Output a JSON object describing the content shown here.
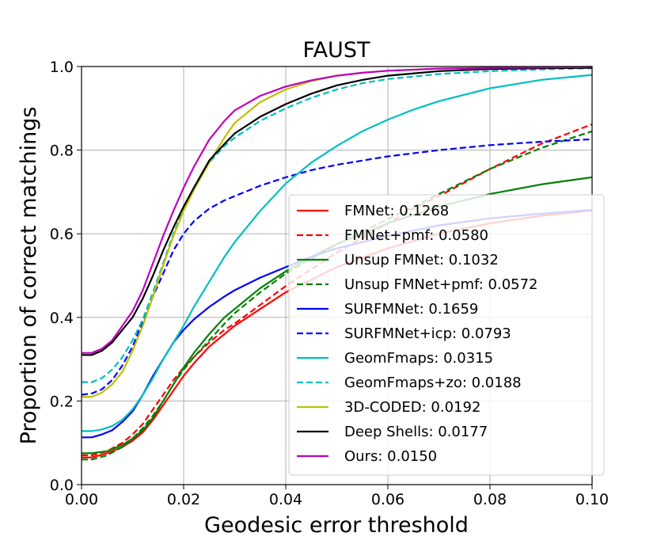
{
  "chart_data": {
    "type": "line",
    "title": "FAUST",
    "xlabel": "Geodesic error threshold",
    "ylabel": "Proportion of correct matchings",
    "xlim": [
      0.0,
      0.1
    ],
    "ylim": [
      0.0,
      1.0
    ],
    "xticks": [
      "0.00",
      "0.02",
      "0.04",
      "0.06",
      "0.08",
      "0.10"
    ],
    "yticks": [
      "0.0",
      "0.2",
      "0.4",
      "0.6",
      "0.8",
      "1.0"
    ],
    "grid": true,
    "legend_position": "lower-right",
    "series": [
      {
        "name": "FMNet: 0.1268",
        "color": "#ff0000",
        "dash": "solid",
        "x": [
          0,
          0.002,
          0.005,
          0.008,
          0.01,
          0.012,
          0.014,
          0.016,
          0.018,
          0.02,
          0.022,
          0.025,
          0.028,
          0.03,
          0.035,
          0.04,
          0.045,
          0.05,
          0.06,
          0.07,
          0.08,
          0.09,
          0.1
        ],
        "y": [
          0.065,
          0.065,
          0.075,
          0.09,
          0.105,
          0.125,
          0.155,
          0.19,
          0.225,
          0.26,
          0.29,
          0.33,
          0.36,
          0.38,
          0.42,
          0.46,
          0.49,
          0.52,
          0.565,
          0.6,
          0.625,
          0.643,
          0.655
        ]
      },
      {
        "name": "FMNet+pmf: 0.0580",
        "color": "#ff0000",
        "dash": "dashed",
        "x": [
          0,
          0.002,
          0.005,
          0.008,
          0.01,
          0.012,
          0.014,
          0.016,
          0.018,
          0.02,
          0.022,
          0.025,
          0.028,
          0.03,
          0.035,
          0.04,
          0.045,
          0.05,
          0.055,
          0.06,
          0.065,
          0.07,
          0.08,
          0.09,
          0.1
        ],
        "y": [
          0.07,
          0.07,
          0.08,
          0.1,
          0.12,
          0.145,
          0.18,
          0.215,
          0.25,
          0.28,
          0.305,
          0.34,
          0.37,
          0.385,
          0.43,
          0.475,
          0.515,
          0.555,
          0.59,
          0.625,
          0.66,
          0.69,
          0.755,
          0.815,
          0.862
        ]
      },
      {
        "name": "Unsup FMNet: 0.1032",
        "color": "#008000",
        "dash": "solid",
        "x": [
          0,
          0.002,
          0.005,
          0.008,
          0.01,
          0.012,
          0.014,
          0.016,
          0.018,
          0.02,
          0.022,
          0.025,
          0.028,
          0.03,
          0.035,
          0.04,
          0.045,
          0.05,
          0.06,
          0.07,
          0.08,
          0.09,
          0.1
        ],
        "y": [
          0.075,
          0.075,
          0.08,
          0.095,
          0.11,
          0.13,
          0.16,
          0.2,
          0.24,
          0.28,
          0.315,
          0.36,
          0.4,
          0.42,
          0.47,
          0.51,
          0.545,
          0.575,
          0.625,
          0.665,
          0.695,
          0.718,
          0.735
        ]
      },
      {
        "name": "Unsup FMNet+pmf: 0.0572",
        "color": "#008000",
        "dash": "dashed",
        "x": [
          0,
          0.002,
          0.005,
          0.008,
          0.01,
          0.012,
          0.014,
          0.016,
          0.018,
          0.02,
          0.022,
          0.025,
          0.028,
          0.03,
          0.035,
          0.04,
          0.045,
          0.05,
          0.055,
          0.06,
          0.065,
          0.07,
          0.08,
          0.09,
          0.1
        ],
        "y": [
          0.06,
          0.06,
          0.07,
          0.09,
          0.11,
          0.135,
          0.165,
          0.2,
          0.24,
          0.275,
          0.305,
          0.345,
          0.385,
          0.41,
          0.46,
          0.505,
          0.54,
          0.575,
          0.605,
          0.635,
          0.665,
          0.695,
          0.755,
          0.805,
          0.845
        ]
      },
      {
        "name": "SURFMNet: 0.1659",
        "color": "#0000ff",
        "dash": "solid",
        "x": [
          0,
          0.002,
          0.004,
          0.006,
          0.008,
          0.01,
          0.012,
          0.014,
          0.016,
          0.018,
          0.02,
          0.022,
          0.025,
          0.028,
          0.03,
          0.035,
          0.04,
          0.045,
          0.05,
          0.06,
          0.07,
          0.08,
          0.09,
          0.1
        ],
        "y": [
          0.113,
          0.113,
          0.12,
          0.13,
          0.15,
          0.175,
          0.215,
          0.26,
          0.3,
          0.34,
          0.37,
          0.395,
          0.425,
          0.45,
          0.465,
          0.495,
          0.52,
          0.545,
          0.565,
          0.595,
          0.62,
          0.637,
          0.648,
          0.657
        ]
      },
      {
        "name": "SURFMNet+icp: 0.0793",
        "color": "#0000ff",
        "dash": "dashed",
        "x": [
          0,
          0.002,
          0.004,
          0.006,
          0.008,
          0.01,
          0.012,
          0.014,
          0.016,
          0.018,
          0.02,
          0.022,
          0.025,
          0.028,
          0.03,
          0.035,
          0.04,
          0.045,
          0.05,
          0.06,
          0.07,
          0.08,
          0.09,
          0.1
        ],
        "y": [
          0.215,
          0.218,
          0.228,
          0.25,
          0.285,
          0.33,
          0.39,
          0.45,
          0.505,
          0.56,
          0.6,
          0.63,
          0.66,
          0.68,
          0.69,
          0.715,
          0.735,
          0.752,
          0.765,
          0.785,
          0.8,
          0.812,
          0.82,
          0.826
        ]
      },
      {
        "name": "GeomFmaps: 0.0315",
        "color": "#00bfbf",
        "dash": "solid",
        "x": [
          0,
          0.002,
          0.004,
          0.006,
          0.008,
          0.01,
          0.012,
          0.014,
          0.016,
          0.018,
          0.02,
          0.022,
          0.025,
          0.028,
          0.03,
          0.035,
          0.04,
          0.045,
          0.05,
          0.055,
          0.06,
          0.065,
          0.07,
          0.08,
          0.09,
          0.1
        ],
        "y": [
          0.128,
          0.128,
          0.132,
          0.14,
          0.155,
          0.18,
          0.215,
          0.255,
          0.3,
          0.34,
          0.38,
          0.425,
          0.485,
          0.545,
          0.58,
          0.655,
          0.72,
          0.77,
          0.81,
          0.845,
          0.873,
          0.897,
          0.917,
          0.948,
          0.968,
          0.98
        ]
      },
      {
        "name": "GeomFmaps+zo: 0.0188",
        "color": "#00bfbf",
        "dash": "dashed",
        "x": [
          0,
          0.002,
          0.004,
          0.006,
          0.008,
          0.01,
          0.012,
          0.014,
          0.016,
          0.018,
          0.02,
          0.022,
          0.025,
          0.028,
          0.03,
          0.035,
          0.04,
          0.045,
          0.05,
          0.055,
          0.06,
          0.07,
          0.08,
          0.09,
          0.1
        ],
        "y": [
          0.245,
          0.245,
          0.255,
          0.275,
          0.305,
          0.345,
          0.395,
          0.46,
          0.53,
          0.6,
          0.66,
          0.71,
          0.77,
          0.81,
          0.83,
          0.87,
          0.9,
          0.925,
          0.945,
          0.96,
          0.97,
          0.982,
          0.989,
          0.993,
          0.996
        ]
      },
      {
        "name": "3D-CODED: 0.0192",
        "color": "#bfbf00",
        "dash": "solid",
        "x": [
          0,
          0.002,
          0.004,
          0.006,
          0.008,
          0.01,
          0.012,
          0.014,
          0.016,
          0.018,
          0.02,
          0.022,
          0.025,
          0.028,
          0.03,
          0.035,
          0.04,
          0.045,
          0.05,
          0.055,
          0.06,
          0.07,
          0.08,
          0.09,
          0.1
        ],
        "y": [
          0.21,
          0.21,
          0.22,
          0.24,
          0.27,
          0.32,
          0.38,
          0.45,
          0.525,
          0.595,
          0.655,
          0.705,
          0.77,
          0.83,
          0.865,
          0.915,
          0.945,
          0.965,
          0.978,
          0.985,
          0.99,
          0.995,
          0.997,
          0.998,
          0.999
        ]
      },
      {
        "name": "Deep Shells: 0.0177",
        "color": "#000000",
        "dash": "solid",
        "x": [
          0,
          0.002,
          0.004,
          0.006,
          0.008,
          0.01,
          0.012,
          0.014,
          0.016,
          0.018,
          0.02,
          0.022,
          0.025,
          0.028,
          0.03,
          0.035,
          0.04,
          0.045,
          0.05,
          0.055,
          0.06,
          0.07,
          0.08,
          0.09,
          0.1
        ],
        "y": [
          0.31,
          0.31,
          0.32,
          0.34,
          0.37,
          0.4,
          0.445,
          0.5,
          0.56,
          0.615,
          0.665,
          0.71,
          0.775,
          0.815,
          0.84,
          0.88,
          0.91,
          0.935,
          0.955,
          0.968,
          0.978,
          0.989,
          0.994,
          0.996,
          0.997
        ]
      },
      {
        "name": "Ours: 0.0150",
        "color": "#bf00bf",
        "dash": "solid",
        "x": [
          0,
          0.002,
          0.004,
          0.006,
          0.008,
          0.01,
          0.012,
          0.014,
          0.016,
          0.018,
          0.02,
          0.022,
          0.025,
          0.028,
          0.03,
          0.035,
          0.04,
          0.045,
          0.05,
          0.055,
          0.06,
          0.07,
          0.08,
          0.09,
          0.1
        ],
        "y": [
          0.315,
          0.315,
          0.325,
          0.345,
          0.38,
          0.415,
          0.465,
          0.53,
          0.595,
          0.655,
          0.71,
          0.76,
          0.825,
          0.87,
          0.895,
          0.93,
          0.952,
          0.967,
          0.978,
          0.985,
          0.99,
          0.995,
          0.997,
          0.998,
          0.999
        ]
      }
    ]
  }
}
